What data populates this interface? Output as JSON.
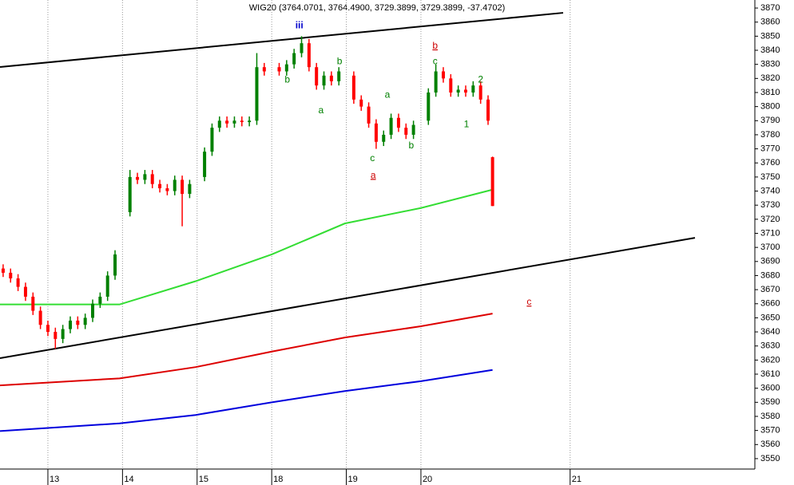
{
  "chart_data": {
    "type": "candlestick",
    "title": "WIG20 (3764.0701, 3764.4900, 3729.3899, 3729.3899, -37.4702)",
    "xlim": [
      -0.642,
      9.476
    ],
    "xticks": [
      {
        "value": 0,
        "label": "13"
      },
      {
        "value": 1,
        "label": "14"
      },
      {
        "value": 2,
        "label": "15"
      },
      {
        "value": 3,
        "label": "18"
      },
      {
        "value": 4,
        "label": "19"
      },
      {
        "value": 5,
        "label": "20"
      },
      {
        "value": 7,
        "label": "21"
      }
    ],
    "ylim": [
      3542.6,
      3875.7
    ],
    "yticks": [
      3550,
      3560,
      3570,
      3580,
      3590,
      3600,
      3610,
      3620,
      3630,
      3640,
      3650,
      3660,
      3670,
      3680,
      3690,
      3700,
      3710,
      3720,
      3730,
      3740,
      3750,
      3760,
      3770,
      3780,
      3790,
      3800,
      3810,
      3820,
      3830,
      3840,
      3850,
      3860,
      3870
    ],
    "up_color": "#008000",
    "down_color": "#ff0000",
    "x": [
      -0.6,
      -0.5,
      -0.4,
      -0.3,
      -0.2,
      -0.1,
      0,
      0.1,
      0.2,
      0.3,
      0.4,
      0.5,
      0.6,
      0.7,
      0.8,
      0.9,
      1.1,
      1.2,
      1.3,
      1.4,
      1.5,
      1.6,
      1.7,
      1.8,
      1.9,
      2.1,
      2.2,
      2.3,
      2.4,
      2.5,
      2.6,
      2.7,
      2.8,
      2.9,
      3.1,
      3.2,
      3.3,
      3.4,
      3.5,
      3.6,
      3.7,
      3.8,
      3.9,
      4.1,
      4.2,
      4.3,
      4.4,
      4.5,
      4.6,
      4.7,
      4.8,
      4.9,
      5.1,
      5.2,
      5.3,
      5.4,
      5.5,
      5.6,
      5.7,
      5.8,
      5.9,
      5.96
    ],
    "open": [
      3685,
      3682,
      3678,
      3672,
      3665,
      3655,
      3645,
      3640,
      3635,
      3642,
      3648,
      3645,
      3650,
      3660,
      3665,
      3680,
      3725,
      3750,
      3748,
      3752,
      3745,
      3742,
      3740,
      3748,
      3738,
      3750,
      3768,
      3785,
      3790,
      3788,
      3790,
      3789,
      3790,
      3828,
      3828,
      3825,
      3830,
      3838,
      3845,
      3828,
      3815,
      3822,
      3818,
      3822,
      3805,
      3800,
      3788,
      3775,
      3780,
      3792,
      3785,
      3780,
      3790,
      3810,
      3825,
      3820,
      3810,
      3812,
      3810,
      3815,
      3805,
      3764.0701
    ],
    "high": [
      3688,
      3685,
      3681,
      3675,
      3668,
      3658,
      3648,
      3643,
      3645,
      3651,
      3651,
      3653,
      3663,
      3668,
      3683,
      3698,
      3755,
      3753,
      3755,
      3755,
      3748,
      3745,
      3751,
      3751,
      3748,
      3771,
      3788,
      3793,
      3793,
      3793,
      3793,
      3793,
      3838,
      3831,
      3831,
      3833,
      3841,
      3850,
      3848,
      3831,
      3825,
      3825,
      3828,
      3825,
      3808,
      3803,
      3791,
      3783,
      3795,
      3795,
      3788,
      3790,
      3813,
      3830,
      3828,
      3823,
      3815,
      3815,
      3818,
      3818,
      3808,
      3764.49
    ],
    "low": [
      3679,
      3675,
      3669,
      3662,
      3652,
      3642,
      3637,
      3628,
      3632,
      3639,
      3642,
      3642,
      3647,
      3657,
      3662,
      3677,
      3722,
      3745,
      3745,
      3742,
      3739,
      3737,
      3737,
      3715,
      3735,
      3747,
      3765,
      3782,
      3785,
      3785,
      3786,
      3786,
      3787,
      3822,
      3822,
      3822,
      3827,
      3835,
      3825,
      3812,
      3812,
      3815,
      3815,
      3802,
      3797,
      3785,
      3770,
      3772,
      3777,
      3782,
      3777,
      3777,
      3787,
      3807,
      3817,
      3807,
      3807,
      3807,
      3807,
      3802,
      3787,
      3729.3899
    ],
    "close": [
      3682,
      3678,
      3672,
      3665,
      3655,
      3645,
      3640,
      3635,
      3642,
      3648,
      3645,
      3650,
      3660,
      3665,
      3680,
      3695,
      3750,
      3748,
      3752,
      3745,
      3742,
      3740,
      3748,
      3738,
      3745,
      3768,
      3785,
      3790,
      3788,
      3790,
      3789,
      3790,
      3828,
      3825,
      3825,
      3830,
      3838,
      3845,
      3828,
      3815,
      3822,
      3818,
      3825,
      3805,
      3800,
      3788,
      3775,
      3780,
      3792,
      3785,
      3780,
      3787,
      3810,
      3825,
      3820,
      3810,
      3812,
      3810,
      3815,
      3805,
      3790,
      3729.3899
    ],
    "lines": [
      {
        "color": "#000000",
        "x": [
          -0.642,
          6.906
        ],
        "values": [
          3828.1,
          3866.6
        ]
      },
      {
        "color": "#000000",
        "x": [
          -0.642,
          8.673
        ],
        "values": [
          3621.3,
          3706.8
        ]
      },
      {
        "color": "#33dd33",
        "x": [
          -0.642,
          0.96,
          1.98,
          3.0,
          3.98,
          5.0,
          5.96
        ],
        "values": [
          3659.5,
          3659.5,
          3676,
          3695,
          3717,
          3728,
          3741
        ]
      },
      {
        "color": "#dd0000",
        "x": [
          -0.642,
          0.96,
          1.98,
          3.0,
          3.98,
          5.0,
          5.96
        ],
        "values": [
          3602,
          3607,
          3615,
          3626,
          3636,
          3644,
          3653
        ]
      },
      {
        "color": "#0000dd",
        "x": [
          -0.642,
          0.96,
          1.98,
          3.0,
          3.98,
          5.0,
          5.96
        ],
        "values": [
          3569.6,
          3575,
          3581,
          3590,
          3598,
          3605,
          3613
        ]
      }
    ],
    "annotations": [
      {
        "text": "iii",
        "x": 3.37,
        "y": 3857.5,
        "color": "#0000cc"
      },
      {
        "text": "b",
        "x": 3.91,
        "y": 3832,
        "color": "#008000"
      },
      {
        "text": "b",
        "x": 3.21,
        "y": 3819,
        "color": "#008000"
      },
      {
        "text": "a",
        "x": 3.66,
        "y": 3797,
        "color": "#008000"
      },
      {
        "text": "a",
        "x": 4.55,
        "y": 3808,
        "color": "#008000"
      },
      {
        "text": "c",
        "x": 4.35,
        "y": 3763,
        "color": "#008000"
      },
      {
        "text": "a",
        "x": 4.36,
        "y": 3751,
        "color": "#cc0000"
      },
      {
        "text": "b",
        "x": 4.87,
        "y": 3772,
        "color": "#008000"
      },
      {
        "text": "b",
        "x": 5.19,
        "y": 3843,
        "color": "#cc0000"
      },
      {
        "text": "c",
        "x": 5.19,
        "y": 3832,
        "color": "#008000"
      },
      {
        "text": "2",
        "x": 5.8,
        "y": 3819,
        "color": "#008000"
      },
      {
        "text": "1",
        "x": 5.61,
        "y": 3787,
        "color": "#008000"
      },
      {
        "text": "c",
        "x": 6.45,
        "y": 3661,
        "color": "#cc0000"
      }
    ]
  }
}
